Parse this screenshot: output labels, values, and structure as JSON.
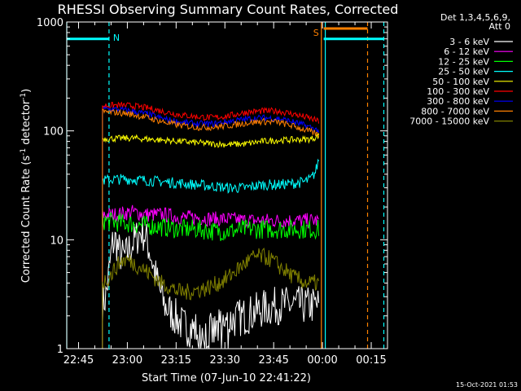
{
  "chart_data": {
    "type": "line",
    "title": "RHESSI Observing Summary Count Rates, Corrected",
    "xlabel": "Start Time (07-Jun-10 22:41:22)",
    "ylabel_main": "Corrected Count Rate (s",
    "ylabel_sup1": "-1",
    "ylabel_mid": " detector",
    "ylabel_sup2": "-1",
    "ylabel_end": ")",
    "yscale": "log",
    "ylim": [
      1,
      1000
    ],
    "xlim": [
      "22:41:22",
      "00:20:00"
    ],
    "x_ticks": [
      "22:45",
      "23:00",
      "23:15",
      "23:30",
      "23:45",
      "00:00",
      "00:15"
    ],
    "x_tick_minutes": [
      3.63,
      18.63,
      33.63,
      48.63,
      63.63,
      78.63,
      93.63
    ],
    "y_ticks": [
      "1",
      "10",
      "100",
      "1000"
    ],
    "y_tick_values": [
      1,
      10,
      100,
      1000
    ],
    "legend_header": [
      "Det 1,3,4,5,6,9,",
      "Att 0"
    ],
    "legend_position": "right",
    "footer": "15-Oct-2021 01:53",
    "markers": {
      "night_label": "N",
      "saa_label": "S",
      "night_color": "#00ffff",
      "saa_color": "#ff8000"
    },
    "segments": [
      {
        "kind": "night-bar",
        "x0": 0.0,
        "x1": 13.0,
        "y": 700
      },
      {
        "kind": "night-bar",
        "x0": 79.0,
        "x1": 97.5,
        "y": 700
      },
      {
        "kind": "saa-bar",
        "x0": 79.0,
        "x1": 92.5,
        "y": 800
      }
    ],
    "vlines": [
      {
        "kind": "solid-cyan",
        "x": 0.0
      },
      {
        "kind": "solid-cyan",
        "x": 79.5
      },
      {
        "kind": "dashed-cyan",
        "x": 13.0
      },
      {
        "kind": "dashed-cyan",
        "x": 97.5
      },
      {
        "kind": "solid-orange",
        "x": 78.3
      },
      {
        "kind": "dashed-orange",
        "x": 92.5
      }
    ],
    "data_x_range": [
      11.0,
      77.5
    ],
    "series": [
      {
        "name": "3 - 6 keV",
        "color": "#ffffff",
        "x": [
          11,
          12,
          13,
          14,
          15,
          16,
          17,
          18,
          19,
          20,
          21,
          22,
          23,
          24,
          25,
          26,
          27,
          28,
          30,
          33,
          36,
          40,
          45,
          50,
          55,
          60,
          65,
          70,
          75,
          77.5
        ],
        "values": [
          2.5,
          3,
          5,
          9,
          10,
          8,
          7,
          7,
          8,
          9,
          10,
          11,
          12,
          11,
          9,
          7,
          5,
          4,
          2.5,
          2,
          1.6,
          1.5,
          1.4,
          1.8,
          2,
          2.3,
          2.5,
          2.5,
          2.5,
          2.5
        ]
      },
      {
        "name": "6 - 12 keV",
        "color": "#ff00ff",
        "x": [
          11,
          15,
          20,
          25,
          30,
          35,
          40,
          45,
          50,
          55,
          60,
          65,
          70,
          75,
          77.5
        ],
        "values": [
          17,
          17,
          18,
          17,
          17,
          16,
          16,
          15.5,
          15.5,
          15,
          15,
          15,
          15,
          15,
          15
        ]
      },
      {
        "name": "12 - 25 keV",
        "color": "#00ff00",
        "x": [
          11,
          15,
          20,
          25,
          30,
          35,
          40,
          45,
          50,
          55,
          60,
          65,
          70,
          75,
          77.5
        ],
        "values": [
          15,
          14.5,
          14,
          13.5,
          13,
          12.5,
          12.5,
          12,
          12,
          12.5,
          12.5,
          12.5,
          12.5,
          12.5,
          12.5
        ]
      },
      {
        "name": "25 - 50 keV",
        "color": "#00ffff",
        "x": [
          11,
          15,
          20,
          25,
          30,
          35,
          40,
          45,
          50,
          55,
          60,
          65,
          70,
          73,
          75,
          76.5,
          77.5
        ],
        "values": [
          35,
          36,
          36,
          35,
          34,
          33,
          32,
          31,
          30,
          30,
          32,
          32,
          33,
          34,
          36,
          42,
          55
        ]
      },
      {
        "name": "50 - 100 keV",
        "color": "#ffff00",
        "x": [
          11,
          15,
          20,
          25,
          30,
          35,
          40,
          45,
          50,
          55,
          60,
          65,
          70,
          75,
          77.5
        ],
        "values": [
          85,
          85,
          86,
          84,
          82,
          80,
          78,
          76,
          75,
          76,
          80,
          82,
          83,
          84,
          90
        ]
      },
      {
        "name": "100 - 300 keV",
        "color": "#ff0000",
        "x": [
          11,
          15,
          20,
          25,
          30,
          35,
          40,
          45,
          50,
          55,
          60,
          65,
          70,
          75,
          77.5
        ],
        "values": [
          170,
          172,
          170,
          162,
          150,
          140,
          135,
          132,
          138,
          148,
          152,
          152,
          142,
          130,
          122
        ]
      },
      {
        "name": "300 - 800 keV",
        "color": "#0000ff",
        "x": [
          11,
          15,
          20,
          25,
          30,
          35,
          40,
          45,
          50,
          55,
          60,
          65,
          70,
          75,
          77.5
        ],
        "values": [
          158,
          158,
          152,
          142,
          128,
          120,
          116,
          116,
          122,
          128,
          132,
          130,
          120,
          108,
          100
        ]
      },
      {
        "name": "800 - 7000 keV",
        "color": "#ff8000",
        "x": [
          11,
          15,
          20,
          25,
          30,
          35,
          40,
          45,
          50,
          55,
          60,
          65,
          70,
          75,
          77.5
        ],
        "values": [
          148,
          148,
          142,
          132,
          120,
          112,
          108,
          108,
          112,
          118,
          122,
          120,
          110,
          98,
          92
        ]
      },
      {
        "name": "7000 - 15000 keV",
        "color": "#808000",
        "x": [
          11,
          13,
          15,
          17,
          19,
          21,
          23,
          25,
          27,
          29,
          31,
          33,
          35,
          37,
          39,
          41,
          43,
          45,
          48,
          50,
          52,
          54,
          56,
          58,
          60,
          62,
          64,
          66,
          68,
          70,
          72,
          74,
          76,
          77.5
        ],
        "values": [
          4,
          4.5,
          5.5,
          6.5,
          6.5,
          6,
          5.5,
          5,
          4.5,
          4,
          3.8,
          3.5,
          3.3,
          3.3,
          3.4,
          3.5,
          3.6,
          3.8,
          4.2,
          4.6,
          5.2,
          5.8,
          6.5,
          7,
          7,
          6.8,
          6.2,
          5.5,
          5,
          4.5,
          4.2,
          4,
          4,
          4
        ]
      }
    ]
  }
}
